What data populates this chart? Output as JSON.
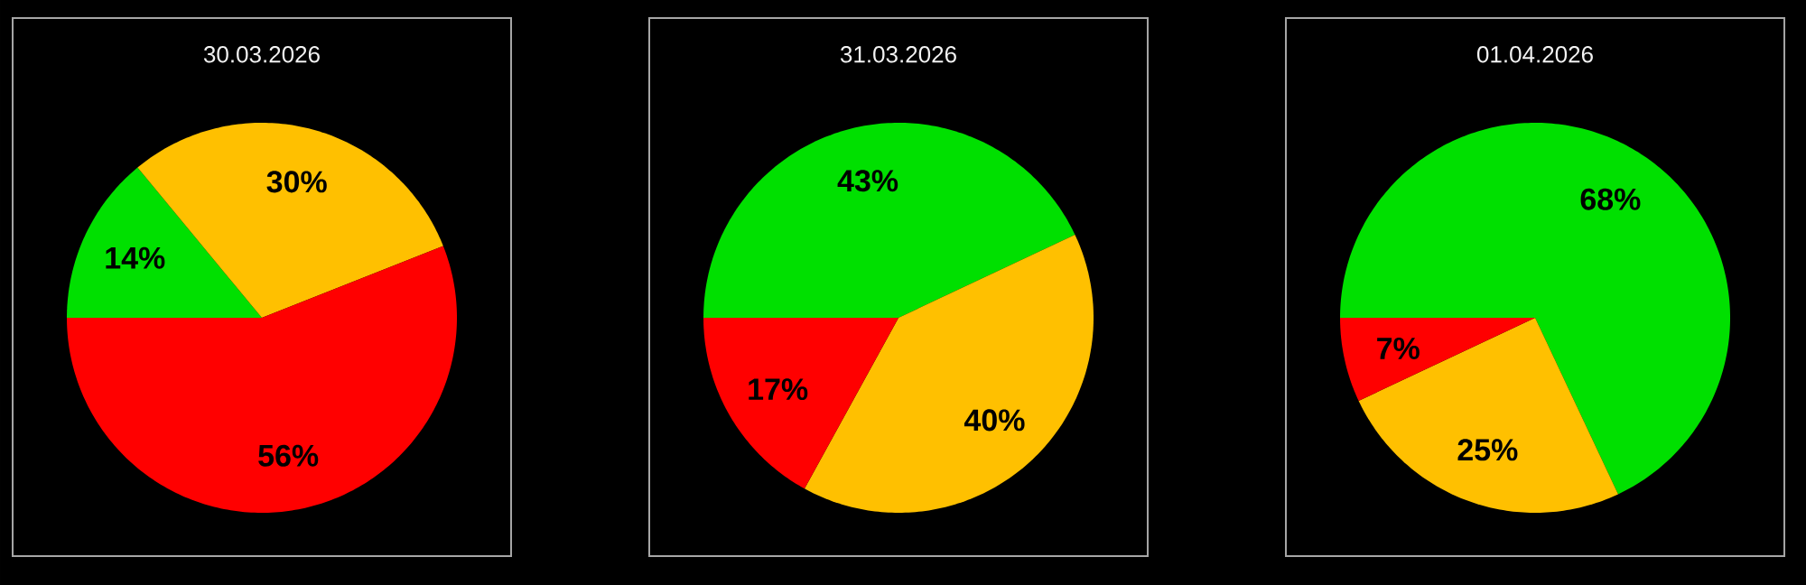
{
  "chart_data": [
    {
      "type": "pie",
      "title": "30.03.2026",
      "categories": [
        null,
        null,
        null
      ],
      "values": [
        14,
        30,
        56
      ],
      "colors": [
        "#00e000",
        "#ffc000",
        "#ff0000"
      ],
      "value_labels": [
        "14%",
        "30%",
        "56%"
      ]
    },
    {
      "type": "pie",
      "title": "31.03.2026",
      "categories": [
        null,
        null,
        null
      ],
      "values": [
        43,
        40,
        17
      ],
      "colors": [
        "#00e000",
        "#ffc000",
        "#ff0000"
      ],
      "value_labels": [
        "43%",
        "40%",
        "17%"
      ]
    },
    {
      "type": "pie",
      "title": "01.04.2026",
      "categories": [
        null,
        null,
        null
      ],
      "values": [
        68,
        25,
        7
      ],
      "colors": [
        "#00e000",
        "#ffc000",
        "#ff0000"
      ],
      "value_labels": [
        "68%",
        "25%",
        "7%"
      ]
    }
  ]
}
